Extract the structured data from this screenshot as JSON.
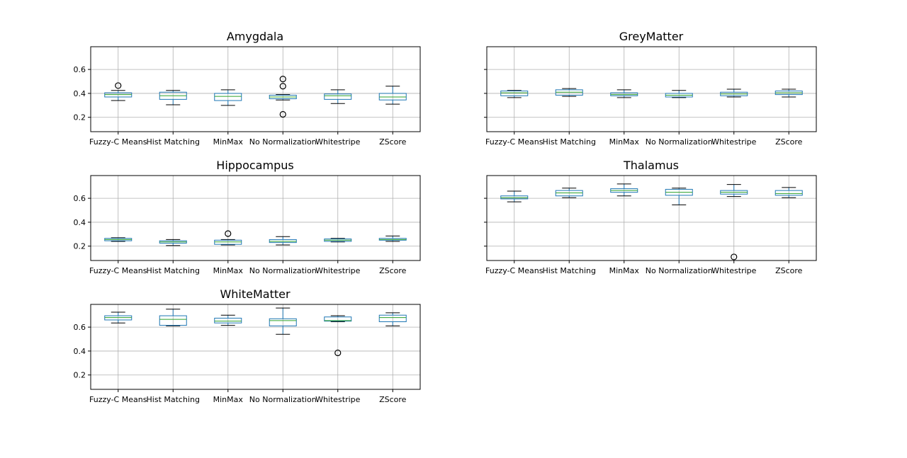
{
  "chart_data": [
    {
      "type": "box",
      "title": "Amygdala",
      "categories": [
        "Fuzzy-C Means",
        "Hist Matching",
        "MinMax",
        "No Normalization",
        "Whitestripe",
        "ZScore"
      ],
      "ylim": [
        0.08,
        0.79
      ],
      "yticks": [
        0.2,
        0.4,
        0.6
      ],
      "show_ytick_labels": true,
      "grid": true,
      "boxes": [
        {
          "whislo": 0.34,
          "q1": 0.37,
          "med": 0.39,
          "q3": 0.405,
          "whishi": 0.425,
          "fliers": [
            0.465
          ]
        },
        {
          "whislo": 0.305,
          "q1": 0.35,
          "med": 0.38,
          "q3": 0.41,
          "whishi": 0.425,
          "fliers": []
        },
        {
          "whislo": 0.3,
          "q1": 0.34,
          "med": 0.375,
          "q3": 0.4,
          "whishi": 0.43,
          "fliers": []
        },
        {
          "whislo": 0.345,
          "q1": 0.355,
          "med": 0.37,
          "q3": 0.385,
          "whishi": 0.39,
          "fliers": [
            0.52,
            0.46,
            0.225
          ]
        },
        {
          "whislo": 0.315,
          "q1": 0.35,
          "med": 0.38,
          "q3": 0.395,
          "whishi": 0.43,
          "fliers": []
        },
        {
          "whislo": 0.31,
          "q1": 0.345,
          "med": 0.37,
          "q3": 0.4,
          "whishi": 0.46,
          "fliers": []
        }
      ]
    },
    {
      "type": "box",
      "title": "GreyMatter",
      "categories": [
        "Fuzzy-C Means",
        "Hist Matching",
        "MinMax",
        "No Normalization",
        "Whitestripe",
        "ZScore"
      ],
      "ylim": [
        0.08,
        0.79
      ],
      "yticks": [
        0.2,
        0.4,
        0.6
      ],
      "show_ytick_labels": false,
      "grid": true,
      "boxes": [
        {
          "whislo": 0.365,
          "q1": 0.38,
          "med": 0.405,
          "q3": 0.42,
          "whishi": 0.425,
          "fliers": []
        },
        {
          "whislo": 0.375,
          "q1": 0.385,
          "med": 0.41,
          "q3": 0.43,
          "whishi": 0.44,
          "fliers": []
        },
        {
          "whislo": 0.365,
          "q1": 0.38,
          "med": 0.39,
          "q3": 0.405,
          "whishi": 0.43,
          "fliers": []
        },
        {
          "whislo": 0.365,
          "q1": 0.37,
          "med": 0.385,
          "q3": 0.4,
          "whishi": 0.425,
          "fliers": []
        },
        {
          "whislo": 0.37,
          "q1": 0.38,
          "med": 0.395,
          "q3": 0.41,
          "whishi": 0.435,
          "fliers": []
        },
        {
          "whislo": 0.37,
          "q1": 0.39,
          "med": 0.405,
          "q3": 0.42,
          "whishi": 0.435,
          "fliers": []
        }
      ]
    },
    {
      "type": "box",
      "title": "Hippocampus",
      "categories": [
        "Fuzzy-C Means",
        "Hist Matching",
        "MinMax",
        "No Normalization",
        "Whitestripe",
        "ZScore"
      ],
      "ylim": [
        0.08,
        0.79
      ],
      "yticks": [
        0.2,
        0.4,
        0.6
      ],
      "show_ytick_labels": true,
      "grid": true,
      "boxes": [
        {
          "whislo": 0.24,
          "q1": 0.245,
          "med": 0.255,
          "q3": 0.265,
          "whishi": 0.27,
          "fliers": []
        },
        {
          "whislo": 0.205,
          "q1": 0.225,
          "med": 0.235,
          "q3": 0.245,
          "whishi": 0.255,
          "fliers": []
        },
        {
          "whislo": 0.21,
          "q1": 0.215,
          "med": 0.235,
          "q3": 0.25,
          "whishi": 0.255,
          "fliers": [
            0.305
          ]
        },
        {
          "whislo": 0.21,
          "q1": 0.23,
          "med": 0.24,
          "q3": 0.255,
          "whishi": 0.28,
          "fliers": []
        },
        {
          "whislo": 0.235,
          "q1": 0.24,
          "med": 0.25,
          "q3": 0.26,
          "whishi": 0.265,
          "fliers": []
        },
        {
          "whislo": 0.24,
          "q1": 0.25,
          "med": 0.255,
          "q3": 0.265,
          "whishi": 0.285,
          "fliers": []
        }
      ]
    },
    {
      "type": "box",
      "title": "Thalamus",
      "categories": [
        "Fuzzy-C Means",
        "Hist Matching",
        "MinMax",
        "No Normalization",
        "Whitestripe",
        "ZScore"
      ],
      "ylim": [
        0.08,
        0.79
      ],
      "yticks": [
        0.2,
        0.4,
        0.6
      ],
      "show_ytick_labels": false,
      "grid": true,
      "boxes": [
        {
          "whislo": 0.57,
          "q1": 0.595,
          "med": 0.605,
          "q3": 0.62,
          "whishi": 0.66,
          "fliers": []
        },
        {
          "whislo": 0.605,
          "q1": 0.62,
          "med": 0.645,
          "q3": 0.665,
          "whishi": 0.685,
          "fliers": []
        },
        {
          "whislo": 0.62,
          "q1": 0.65,
          "med": 0.665,
          "q3": 0.68,
          "whishi": 0.72,
          "fliers": []
        },
        {
          "whislo": 0.545,
          "q1": 0.625,
          "med": 0.65,
          "q3": 0.675,
          "whishi": 0.685,
          "fliers": []
        },
        {
          "whislo": 0.615,
          "q1": 0.635,
          "med": 0.65,
          "q3": 0.665,
          "whishi": 0.715,
          "fliers": [
            0.11
          ]
        },
        {
          "whislo": 0.605,
          "q1": 0.625,
          "med": 0.64,
          "q3": 0.665,
          "whishi": 0.69,
          "fliers": []
        }
      ]
    },
    {
      "type": "box",
      "title": "WhiteMatter",
      "categories": [
        "Fuzzy-C Means",
        "Hist Matching",
        "MinMax",
        "No Normalization",
        "Whitestripe",
        "ZScore"
      ],
      "ylim": [
        0.08,
        0.79
      ],
      "yticks": [
        0.2,
        0.4,
        0.6
      ],
      "show_ytick_labels": true,
      "grid": true,
      "boxes": [
        {
          "whislo": 0.635,
          "q1": 0.66,
          "med": 0.68,
          "q3": 0.695,
          "whishi": 0.725,
          "fliers": []
        },
        {
          "whislo": 0.61,
          "q1": 0.615,
          "med": 0.665,
          "q3": 0.695,
          "whishi": 0.75,
          "fliers": []
        },
        {
          "whislo": 0.615,
          "q1": 0.635,
          "med": 0.65,
          "q3": 0.675,
          "whishi": 0.7,
          "fliers": []
        },
        {
          "whislo": 0.54,
          "q1": 0.61,
          "med": 0.655,
          "q3": 0.67,
          "whishi": 0.76,
          "fliers": []
        },
        {
          "whislo": 0.645,
          "q1": 0.65,
          "med": 0.655,
          "q3": 0.685,
          "whishi": 0.695,
          "fliers": [
            0.385
          ]
        },
        {
          "whislo": 0.61,
          "q1": 0.645,
          "med": 0.68,
          "q3": 0.7,
          "whishi": 0.72,
          "fliers": []
        }
      ]
    }
  ],
  "style": {
    "box_color": "#1f77b4",
    "median_color": "#2ca02c",
    "whisker_color": "#1f77b4",
    "cap_color": "#000000",
    "flier_color": "#000000",
    "grid_color": "#b0b0b0",
    "axis_color": "#000000"
  }
}
